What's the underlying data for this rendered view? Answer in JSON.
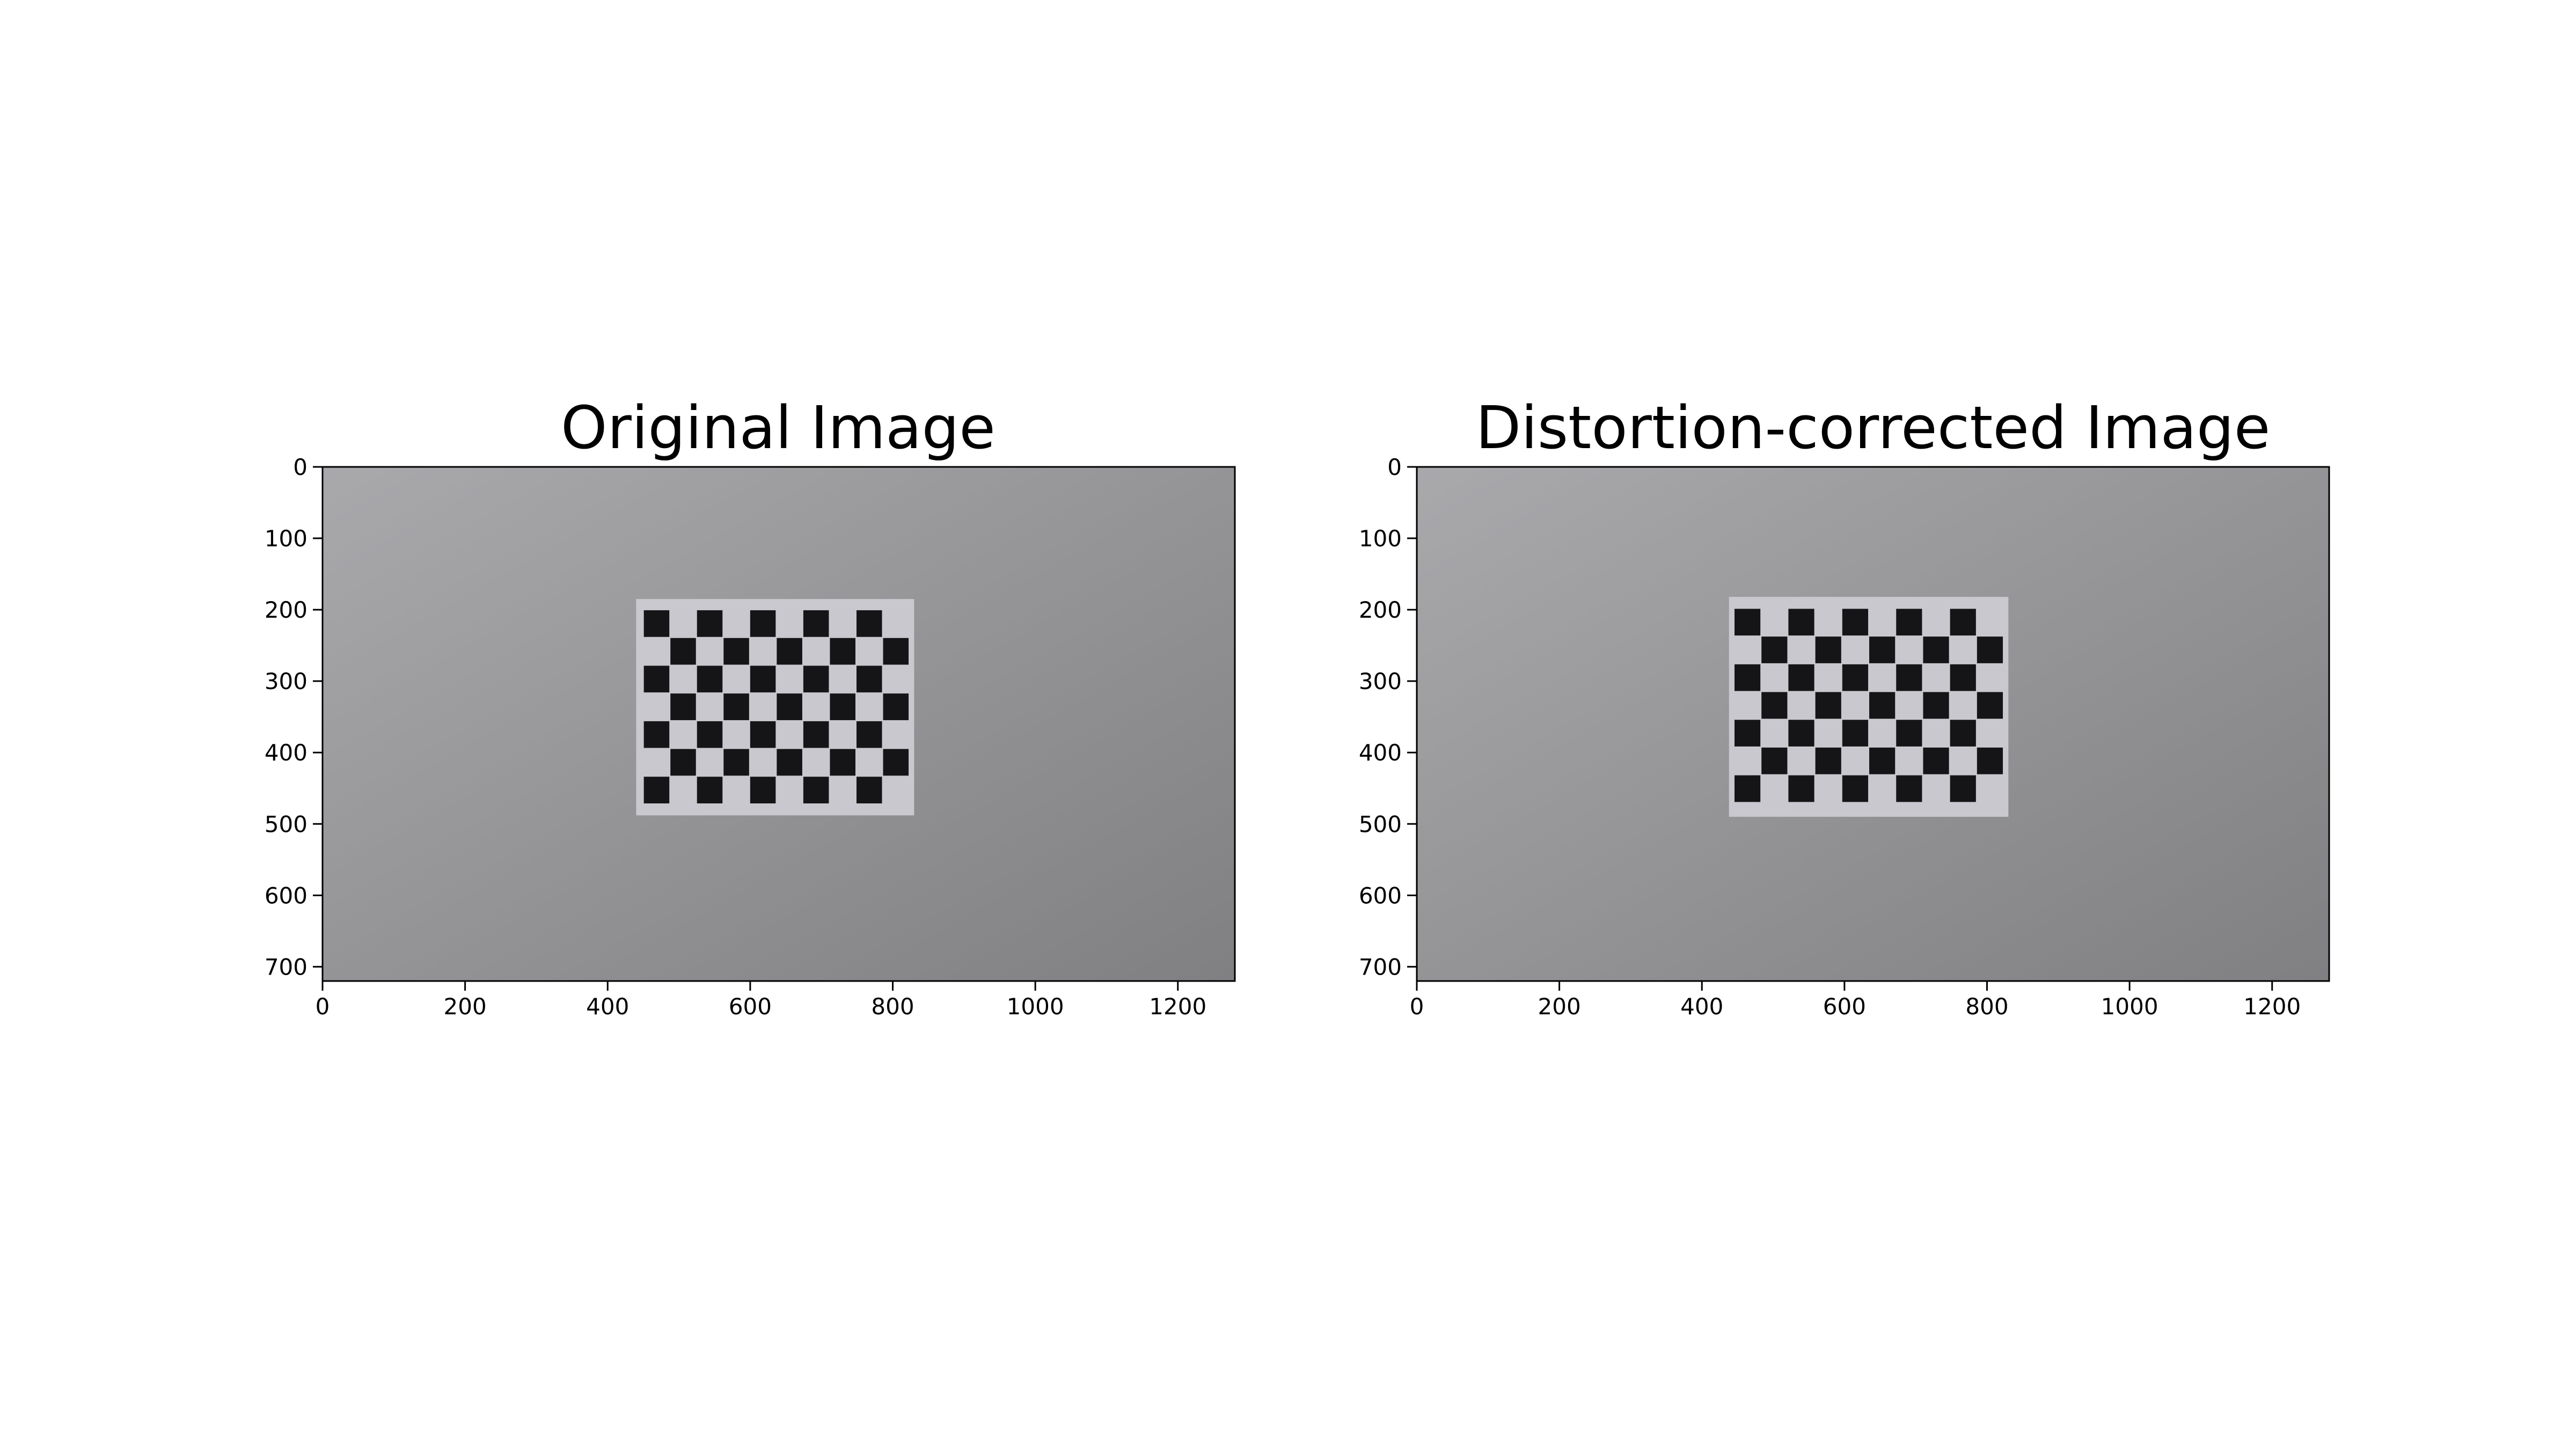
{
  "figure": {
    "panels": [
      {
        "id": "original",
        "title": "Original Image",
        "x_ticks": [
          "0",
          "200",
          "400",
          "600",
          "800",
          "1000",
          "1200"
        ],
        "y_ticks": [
          "0",
          "100",
          "200",
          "300",
          "400",
          "500",
          "600",
          "700"
        ]
      },
      {
        "id": "corrected",
        "title": "Distortion-corrected Image",
        "x_ticks": [
          "0",
          "200",
          "400",
          "600",
          "800",
          "1000",
          "1200"
        ],
        "y_ticks": [
          "0",
          "100",
          "200",
          "300",
          "400",
          "500",
          "600",
          "700"
        ]
      }
    ],
    "image_colors": {
      "wall_light": "#a9a9ac",
      "wall_dark": "#808082",
      "paper": "#c9c8ce",
      "square": "#151517"
    }
  },
  "chart_data": [
    {
      "type": "image",
      "title": "Original Image",
      "xlim": [
        0,
        1280
      ],
      "ylim": [
        720,
        0
      ],
      "xticks": [
        0,
        200,
        400,
        600,
        800,
        1000,
        1200
      ],
      "yticks": [
        0,
        100,
        200,
        300,
        400,
        500,
        600,
        700
      ],
      "grid": false,
      "image_content": {
        "pattern": "checkerboard",
        "columns": 10,
        "rows": 7,
        "paper_extent_x": [
          440,
          830
        ],
        "paper_extent_y": [
          185,
          488
        ],
        "squares_extent_x": [
          450,
          823
        ],
        "squares_extent_y": [
          200,
          472
        ]
      }
    },
    {
      "type": "image",
      "title": "Distortion-corrected Image",
      "xlim": [
        0,
        1280
      ],
      "ylim": [
        720,
        0
      ],
      "xticks": [
        0,
        200,
        400,
        600,
        800,
        1000,
        1200
      ],
      "yticks": [
        0,
        100,
        200,
        300,
        400,
        500,
        600,
        700
      ],
      "grid": false,
      "image_content": {
        "pattern": "checkerboard",
        "columns": 10,
        "rows": 7,
        "paper_extent_x": [
          438,
          830
        ],
        "paper_extent_y": [
          182,
          490
        ],
        "squares_extent_x": [
          445,
          823
        ],
        "squares_extent_y": [
          198,
          470
        ]
      }
    }
  ]
}
